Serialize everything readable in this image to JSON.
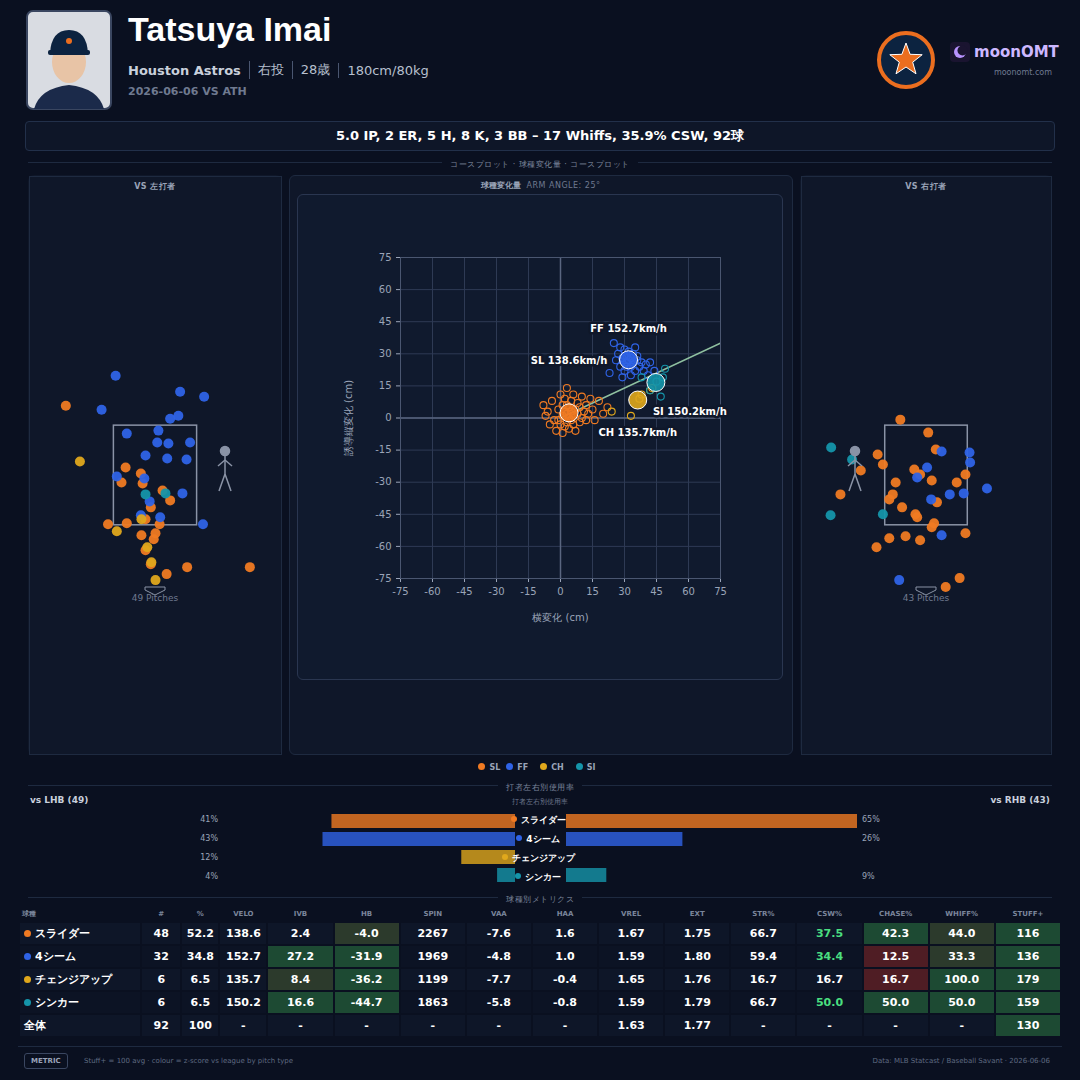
{
  "header": {
    "name": "Tatsuya Imai",
    "team": "Houston Astros",
    "details": [
      "右投",
      "28歳",
      "180cm/80kg"
    ],
    "game": "2026-06-06 VS ATH",
    "brand": "moonOMT",
    "site": "moonomt.com"
  },
  "summary": "5.0 IP, 2 ER, 5 H, 8 K, 3 BB – 17 Whiffs, 35.9% CSW, 92球",
  "sections": {
    "plots": "コースプロット · 球種変化量 · コースプロット",
    "usage": "打者左右別使用率",
    "table": "球種別メトリクス"
  },
  "pitch_types": [
    {
      "code": "SL",
      "color": "#f07a22"
    },
    {
      "code": "FF",
      "color": "#2f63e6"
    },
    {
      "code": "CH",
      "color": "#e0a81c"
    },
    {
      "code": "SI",
      "color": "#1595aa"
    }
  ],
  "chart_data": [
    {
      "type": "scatter",
      "title": "VS 左打者",
      "caption": "49 Pitches",
      "xlim": [
        -2.15,
        2.15
      ],
      "ylim": [
        -3.1,
        8.5
      ],
      "tick_labels": false,
      "grid": false,
      "strike_zone": {
        "x": [
          -0.71,
          0.71
        ],
        "y": [
          1.5,
          3.5
        ]
      },
      "series": [
        {
          "color": "#f07a22",
          "x": [
            -1.53,
            -0.51,
            -0.58,
            -0.22,
            0.12,
            0.25,
            -0.08,
            -0.17,
            -0.81,
            -0.49,
            0.07,
            0,
            -0.24,
            -0.03,
            -0.17,
            -0.08,
            0.19,
            0.54,
            1.61,
            -0.25
          ],
          "y": [
            3.9,
            2.66,
            2.36,
            2.34,
            2.2,
            2.0,
            1.86,
            1.62,
            1.52,
            1.54,
            1.52,
            1.34,
            1.3,
            1.22,
            1.0,
            0.72,
            0.52,
            0.66,
            0.66,
            2.54
          ]
        },
        {
          "color": "#2f63e6",
          "x": [
            -0.68,
            -0.92,
            0.42,
            0.83,
            0.39,
            0.25,
            -0.49,
            0.03,
            0.22,
            0.59,
            0.53,
            0.2,
            -0.19,
            0.46,
            -0.1,
            0.08,
            0.81,
            -0.25,
            -0.66,
            -0.17,
            0.05
          ],
          "y": [
            4.5,
            3.82,
            4.18,
            4.08,
            3.7,
            3.64,
            3.34,
            3.16,
            3.14,
            3.16,
            2.82,
            2.84,
            2.44,
            2.14,
            1.98,
            1.66,
            1.52,
            1.7,
            2.48,
            2.9,
            3.4
          ]
        },
        {
          "color": "#e0a81c",
          "x": [
            -1.29,
            -0.66,
            -0.24,
            -0.14,
            -0.07,
            0
          ],
          "y": [
            2.78,
            1.38,
            1.62,
            1.06,
            0.76,
            0.4
          ]
        },
        {
          "color": "#1595aa",
          "x": [
            -0.17,
            0.17
          ],
          "y": [
            2.12,
            2.14
          ]
        }
      ]
    },
    {
      "type": "scatter",
      "title": "球種変化量",
      "subtitle": "ARM ANGLE: 25°",
      "xlabel": "横変化 (cm)",
      "ylabel": "誘導縦変化 (cm)",
      "xlim": [
        -75,
        75
      ],
      "ylim": [
        -75,
        75
      ],
      "xticks": [
        -75,
        -60,
        -45,
        -30,
        -15,
        0,
        15,
        30,
        45,
        60,
        75
      ],
      "yticks": [
        -75,
        -60,
        -45,
        -30,
        -15,
        0,
        15,
        30,
        45,
        60,
        75
      ],
      "grid": true,
      "arm_angle": 25,
      "series": [
        {
          "color": "#f07a22",
          "mean": [
            4.0,
            2.4
          ],
          "mean_label": "SL 138.6km/h",
          "x": [
            -8,
            -6,
            -4,
            -3,
            -2,
            -1,
            0,
            0,
            1,
            1,
            2,
            2,
            3,
            3,
            3,
            4,
            4,
            4,
            5,
            5,
            5,
            6,
            6,
            6,
            7,
            7,
            8,
            8,
            9,
            9,
            10,
            10,
            11,
            12,
            12,
            13,
            15,
            16,
            18,
            20,
            22,
            -5,
            -1,
            2,
            3,
            -7,
            14,
            1
          ],
          "y": [
            6,
            3,
            8,
            -1,
            -6,
            4,
            11,
            -3,
            1,
            6,
            -4,
            9,
            2,
            -2,
            14,
            0,
            5,
            -5,
            3,
            8,
            -1,
            1,
            -3,
            11,
            4,
            -6,
            2,
            7,
            -2,
            5,
            0,
            10,
            3,
            6,
            -1,
            2,
            4,
            -1,
            8,
            2,
            5,
            -3,
            -1,
            3,
            6,
            1,
            9,
            -7
          ]
        },
        {
          "color": "#2f63e6",
          "mean": [
            31.9,
            27.2
          ],
          "mean_label": "FF 152.7km/h",
          "x": [
            25,
            27,
            28,
            29,
            30,
            30,
            31,
            31,
            32,
            32,
            33,
            33,
            34,
            34,
            35,
            35,
            36,
            36,
            37,
            38,
            39,
            40,
            41,
            42,
            44,
            29,
            23,
            28,
            31,
            33,
            26,
            30
          ],
          "y": [
            35,
            30,
            24,
            28,
            32,
            22,
            26,
            29,
            27,
            31,
            24,
            28,
            26,
            30,
            22,
            33,
            27,
            29,
            24,
            26,
            22,
            25,
            20,
            26,
            22,
            19,
            21,
            33,
            24,
            20,
            27,
            29
          ]
        },
        {
          "color": "#e0a81c",
          "mean": [
            36.2,
            8.4
          ],
          "mean_label": "CH 135.7km/h",
          "x": [
            24,
            33,
            37,
            38,
            42,
            43
          ],
          "y": [
            3,
            1,
            9,
            11,
            13,
            14
          ]
        },
        {
          "color": "#1595aa",
          "mean": [
            44.7,
            16.6
          ],
          "mean_label": "SI 150.2km/h",
          "x": [
            38,
            42,
            45,
            47,
            48,
            49
          ],
          "y": [
            19,
            13,
            17,
            10,
            19,
            23
          ]
        }
      ]
    },
    {
      "type": "scatter",
      "title": "VS 右打者",
      "caption": "43 Pitches",
      "xlim": [
        -2.15,
        2.15
      ],
      "ylim": [
        -3.1,
        8.5
      ],
      "tick_labels": false,
      "grid": false,
      "strike_zone": {
        "x": [
          -0.71,
          0.71
        ],
        "y": [
          1.5,
          3.5
        ]
      },
      "series": [
        {
          "color": "#f07a22",
          "x": [
            -0.45,
            0.03,
            0.16,
            -0.84,
            -0.75,
            -1.13,
            -0.21,
            -0.11,
            0.67,
            0.09,
            -0.64,
            -0.58,
            -0.42,
            -0.16,
            0.13,
            -0.19,
            -1.48,
            -0.86,
            -0.64,
            -0.36,
            0.67,
            -0.11,
            0.09,
            0.52,
            0.18,
            0.57,
            0.33,
            -0.53
          ],
          "y": [
            3.62,
            3.36,
            3.02,
            2.92,
            2.72,
            2.6,
            2.62,
            2.52,
            2.52,
            2.4,
            2.02,
            2.12,
            1.86,
            1.66,
            1.54,
            1.72,
            2.12,
            1.06,
            1.24,
            1.28,
            1.34,
            1.2,
            1.46,
            2.36,
            1.96,
            0.44,
            0.26,
            2.36
          ]
        },
        {
          "color": "#2f63e6",
          "x": [
            0.26,
            0.74,
            0.75,
            0.01,
            -0.16,
            1.04,
            0.64,
            0.4,
            0.08,
            0.26,
            -0.47
          ],
          "y": [
            2.98,
            2.96,
            2.76,
            2.66,
            2.46,
            2.24,
            2.14,
            2.12,
            2.02,
            1.3,
            0.4
          ]
        },
        {
          "color": "#1595aa",
          "x": [
            -1.64,
            -1.28,
            -0.75,
            -1.65
          ],
          "y": [
            3.06,
            2.82,
            1.72,
            1.7
          ]
        }
      ]
    },
    {
      "type": "bar",
      "orientation": "horizontal",
      "title": "打者左右別使用率",
      "categories": [
        "スライダー",
        "4シーム",
        "チェンジアップ",
        "シンカー"
      ],
      "colors": [
        "#f07a22",
        "#2f63e6",
        "#e0a81c",
        "#1595aa"
      ],
      "xlim": [
        0,
        65
      ],
      "tick_labels": false,
      "data_labels": true,
      "series": [
        {
          "name": "vs LHB (49)",
          "values": [
            41,
            43,
            12,
            4
          ],
          "value_labels": [
            "41%",
            "43%",
            "12%",
            "4%"
          ]
        },
        {
          "name": "vs RHB (43)",
          "values": [
            65,
            26,
            0,
            9
          ],
          "value_labels": [
            "65%",
            "26%",
            null,
            "9%"
          ]
        }
      ]
    }
  ],
  "table": {
    "columns": [
      "球種",
      "#",
      "%",
      "VELO",
      "IVB",
      "HB",
      "SPIN",
      "VAA",
      "HAA",
      "VREL",
      "EXT",
      "STR%",
      "CSW%",
      "CHASE%",
      "WHIFF%",
      "STUFF+"
    ],
    "rows": [
      {
        "color": "#f07a22",
        "cells": [
          "スライダー",
          "48",
          "52.2",
          "138.6",
          "2.4",
          "-4.0",
          "2267",
          "-7.6",
          "1.6",
          "1.67",
          "1.75",
          "66.7",
          "37.5",
          "42.3",
          "44.0",
          "116"
        ],
        "colors": [
          null,
          null,
          null,
          null,
          null,
          "#2c3a2c",
          null,
          null,
          null,
          null,
          null,
          null,
          null,
          "#1d4a33",
          "#2c3a2c",
          "#1d4a33"
        ],
        "text_colors": [
          null,
          null,
          null,
          null,
          null,
          null,
          null,
          null,
          null,
          null,
          null,
          null,
          "#4ade80",
          null,
          null,
          null
        ]
      },
      {
        "color": "#2f63e6",
        "cells": [
          "4シーム",
          "32",
          "34.8",
          "152.7",
          "27.2",
          "-31.9",
          "1969",
          "-4.8",
          "1.0",
          "1.59",
          "1.80",
          "59.4",
          "34.4",
          "12.5",
          "33.3",
          "136"
        ],
        "colors": [
          null,
          null,
          null,
          null,
          "#1d4a33",
          "#1d4a33",
          null,
          null,
          null,
          null,
          null,
          null,
          null,
          "#4f1d24",
          "#2c3a2c",
          "#1d4a33"
        ],
        "text_colors": [
          null,
          null,
          null,
          null,
          null,
          null,
          null,
          null,
          null,
          null,
          null,
          null,
          "#4ade80",
          null,
          null,
          null
        ]
      },
      {
        "color": "#e0a81c",
        "cells": [
          "チェンジアップ",
          "6",
          "6.5",
          "135.7",
          "8.4",
          "-36.2",
          "1199",
          "-7.7",
          "-0.4",
          "1.65",
          "1.76",
          "16.7",
          "16.7",
          "16.7",
          "100.0",
          "179"
        ],
        "colors": [
          null,
          null,
          null,
          null,
          "#2c3a2c",
          "#1d4a33",
          null,
          null,
          null,
          null,
          null,
          null,
          null,
          "#4f1d24",
          "#1d4a33",
          "#1d4a33"
        ]
      },
      {
        "color": "#1595aa",
        "cells": [
          "シンカー",
          "6",
          "6.5",
          "150.2",
          "16.6",
          "-44.7",
          "1863",
          "-5.8",
          "-0.8",
          "1.59",
          "1.79",
          "66.7",
          "50.0",
          "50.0",
          "50.0",
          "159"
        ],
        "colors": [
          null,
          null,
          null,
          null,
          "#1d4a33",
          "#1d4a33",
          null,
          null,
          null,
          null,
          null,
          null,
          null,
          "#1d4a33",
          "#1d4a33",
          "#1d4a33"
        ],
        "text_colors": [
          null,
          null,
          null,
          null,
          null,
          null,
          null,
          null,
          null,
          null,
          null,
          null,
          "#4ade80",
          null,
          null,
          null
        ]
      },
      {
        "color": null,
        "cells": [
          "全体",
          "92",
          "100",
          "-",
          "-",
          "-",
          "-",
          "-",
          "-",
          "1.63",
          "1.77",
          "-",
          "-",
          "-",
          "-",
          "130"
        ],
        "colors": [
          null,
          null,
          null,
          null,
          null,
          null,
          null,
          null,
          null,
          null,
          null,
          null,
          null,
          null,
          null,
          "#1d4a33"
        ]
      }
    ]
  },
  "footer": {
    "badge": "METRIC",
    "note": "Stuff+ = 100 avg · colour = z-score vs league by pitch type",
    "source": "Data: MLB Statcast / Baseball Savant · 2026-06-06"
  }
}
